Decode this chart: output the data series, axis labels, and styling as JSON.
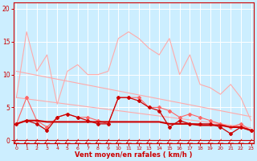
{
  "background_color": "#cceeff",
  "grid_color": "#ffffff",
  "xlabel": "Vent moyen/en rafales ( km/h )",
  "xlabel_color": "#cc0000",
  "xlabel_fontsize": 6,
  "tick_color": "#cc0000",
  "ylim": [
    -0.5,
    21
  ],
  "xlim": [
    -0.3,
    23.3
  ],
  "yticks": [
    0,
    5,
    10,
    15,
    20
  ],
  "xticks": [
    0,
    1,
    2,
    3,
    4,
    5,
    6,
    7,
    8,
    9,
    10,
    11,
    12,
    13,
    14,
    15,
    16,
    17,
    18,
    19,
    20,
    21,
    22,
    23
  ],
  "light_pink": "#ffaaaa",
  "medium_pink": "#ff6666",
  "dark_red": "#cc0000",
  "upper_env_y": [
    6.5,
    16.5,
    10.5,
    13.0,
    5.5,
    10.5,
    11.5,
    10.0,
    10.0,
    10.5,
    15.5,
    16.5,
    15.5,
    14.0,
    13.0,
    15.5,
    10.0,
    13.0,
    8.5,
    8.0,
    7.0,
    8.5,
    6.5,
    3.0
  ],
  "upper_diag_y": [
    10.5,
    10.2,
    9.9,
    9.6,
    9.3,
    9.0,
    8.7,
    8.4,
    8.1,
    7.8,
    7.5,
    7.2,
    6.9,
    6.6,
    6.3,
    6.0,
    5.7,
    5.4,
    5.1,
    4.8,
    4.5,
    4.2,
    3.9,
    3.6
  ],
  "lower_diag_y": [
    6.5,
    6.3,
    6.1,
    5.9,
    5.7,
    5.5,
    5.3,
    5.1,
    4.9,
    4.7,
    4.5,
    4.3,
    4.1,
    3.9,
    3.7,
    3.5,
    3.3,
    3.1,
    2.9,
    2.7,
    2.5,
    2.3,
    2.1,
    1.9
  ],
  "pink_zigzag_y": [
    2.5,
    6.5,
    3.0,
    2.0,
    3.5,
    4.0,
    3.5,
    3.5,
    3.0,
    2.5,
    6.5,
    6.5,
    6.5,
    5.0,
    5.0,
    4.5,
    3.5,
    4.0,
    3.5,
    3.0,
    2.5,
    2.0,
    2.5,
    1.5
  ],
  "dark_zigzag_y": [
    2.5,
    3.0,
    2.5,
    1.5,
    3.5,
    4.0,
    3.5,
    3.0,
    2.5,
    2.5,
    6.5,
    6.5,
    6.0,
    5.0,
    4.5,
    2.0,
    3.0,
    2.5,
    2.5,
    2.5,
    2.0,
    1.0,
    2.0,
    1.5
  ],
  "dark_mean_y": [
    2.5,
    3.0,
    3.0,
    2.8,
    2.8,
    2.8,
    2.8,
    2.8,
    2.8,
    2.8,
    2.8,
    2.8,
    2.8,
    2.8,
    2.8,
    2.5,
    2.5,
    2.5,
    2.3,
    2.3,
    2.3,
    2.0,
    2.0,
    1.5
  ]
}
